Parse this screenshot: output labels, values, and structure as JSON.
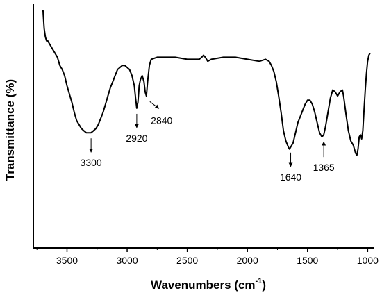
{
  "chart_data": {
    "type": "line",
    "title": "",
    "xlabel": "Wavenumbers (cm",
    "xlabel_sup": "-1",
    "xlabel_close": ")",
    "ylabel": "Transmittance (%)",
    "xlim": [
      3780,
      950
    ],
    "x_reversed": true,
    "y_tick_labels": false,
    "grid": false,
    "x_ticks": [
      3500,
      3000,
      2500,
      2000,
      1500,
      1000
    ],
    "x_tick_labels": [
      "3500",
      "3000",
      "2500",
      "2000",
      "1500",
      "1000"
    ],
    "line_color": "#000000",
    "series": [
      {
        "values": [
          [
            3700,
            0.97
          ],
          [
            3690,
            0.88
          ],
          [
            3680,
            0.84
          ],
          [
            3670,
            0.82
          ],
          [
            3660,
            0.82
          ],
          [
            3650,
            0.81
          ],
          [
            3640,
            0.8
          ],
          [
            3620,
            0.78
          ],
          [
            3600,
            0.76
          ],
          [
            3580,
            0.74
          ],
          [
            3560,
            0.7
          ],
          [
            3540,
            0.68
          ],
          [
            3520,
            0.65
          ],
          [
            3500,
            0.6
          ],
          [
            3480,
            0.56
          ],
          [
            3460,
            0.52
          ],
          [
            3440,
            0.47
          ],
          [
            3420,
            0.43
          ],
          [
            3400,
            0.41
          ],
          [
            3380,
            0.39
          ],
          [
            3360,
            0.38
          ],
          [
            3340,
            0.37
          ],
          [
            3320,
            0.37
          ],
          [
            3300,
            0.37
          ],
          [
            3280,
            0.38
          ],
          [
            3260,
            0.39
          ],
          [
            3240,
            0.41
          ],
          [
            3220,
            0.44
          ],
          [
            3200,
            0.47
          ],
          [
            3180,
            0.51
          ],
          [
            3160,
            0.55
          ],
          [
            3140,
            0.59
          ],
          [
            3120,
            0.62
          ],
          [
            3100,
            0.65
          ],
          [
            3080,
            0.68
          ],
          [
            3060,
            0.69
          ],
          [
            3040,
            0.7
          ],
          [
            3020,
            0.7
          ],
          [
            3000,
            0.69
          ],
          [
            2980,
            0.68
          ],
          [
            2960,
            0.65
          ],
          [
            2940,
            0.6
          ],
          [
            2930,
            0.54
          ],
          [
            2920,
            0.49
          ],
          [
            2910,
            0.52
          ],
          [
            2900,
            0.6
          ],
          [
            2890,
            0.63
          ],
          [
            2875,
            0.65
          ],
          [
            2860,
            0.62
          ],
          [
            2850,
            0.57
          ],
          [
            2840,
            0.55
          ],
          [
            2830,
            0.62
          ],
          [
            2815,
            0.7
          ],
          [
            2800,
            0.73
          ],
          [
            2750,
            0.74
          ],
          [
            2700,
            0.74
          ],
          [
            2600,
            0.74
          ],
          [
            2500,
            0.73
          ],
          [
            2450,
            0.73
          ],
          [
            2400,
            0.73
          ],
          [
            2380,
            0.74
          ],
          [
            2365,
            0.75
          ],
          [
            2350,
            0.74
          ],
          [
            2330,
            0.72
          ],
          [
            2300,
            0.73
          ],
          [
            2200,
            0.74
          ],
          [
            2100,
            0.74
          ],
          [
            2000,
            0.73
          ],
          [
            1900,
            0.72
          ],
          [
            1850,
            0.73
          ],
          [
            1820,
            0.72
          ],
          [
            1800,
            0.7
          ],
          [
            1780,
            0.67
          ],
          [
            1760,
            0.62
          ],
          [
            1740,
            0.55
          ],
          [
            1720,
            0.47
          ],
          [
            1700,
            0.38
          ],
          [
            1680,
            0.33
          ],
          [
            1660,
            0.3
          ],
          [
            1650,
            0.29
          ],
          [
            1640,
            0.3
          ],
          [
            1620,
            0.32
          ],
          [
            1600,
            0.37
          ],
          [
            1580,
            0.42
          ],
          [
            1560,
            0.45
          ],
          [
            1540,
            0.48
          ],
          [
            1520,
            0.51
          ],
          [
            1500,
            0.53
          ],
          [
            1480,
            0.53
          ],
          [
            1460,
            0.51
          ],
          [
            1440,
            0.47
          ],
          [
            1420,
            0.42
          ],
          [
            1400,
            0.37
          ],
          [
            1380,
            0.35
          ],
          [
            1365,
            0.36
          ],
          [
            1350,
            0.4
          ],
          [
            1330,
            0.47
          ],
          [
            1310,
            0.54
          ],
          [
            1290,
            0.58
          ],
          [
            1270,
            0.57
          ],
          [
            1250,
            0.55
          ],
          [
            1230,
            0.57
          ],
          [
            1210,
            0.58
          ],
          [
            1200,
            0.55
          ],
          [
            1180,
            0.46
          ],
          [
            1160,
            0.38
          ],
          [
            1140,
            0.33
          ],
          [
            1120,
            0.31
          ],
          [
            1100,
            0.27
          ],
          [
            1090,
            0.26
          ],
          [
            1080,
            0.29
          ],
          [
            1070,
            0.35
          ],
          [
            1060,
            0.36
          ],
          [
            1050,
            0.34
          ],
          [
            1040,
            0.38
          ],
          [
            1030,
            0.48
          ],
          [
            1020,
            0.58
          ],
          [
            1010,
            0.66
          ],
          [
            1000,
            0.72
          ],
          [
            990,
            0.75
          ],
          [
            980,
            0.76
          ]
        ]
      }
    ],
    "ylim": [
      0,
      1
    ],
    "annotations": [
      {
        "label": "3300",
        "x": 3300,
        "type": "down"
      },
      {
        "label": "2920",
        "x": 2920,
        "type": "down"
      },
      {
        "label": "2840",
        "x": 2840,
        "type": "diagonal"
      },
      {
        "label": "1640",
        "x": 1640,
        "type": "down"
      },
      {
        "label": "1365",
        "x": 1365,
        "type": "up"
      }
    ]
  }
}
